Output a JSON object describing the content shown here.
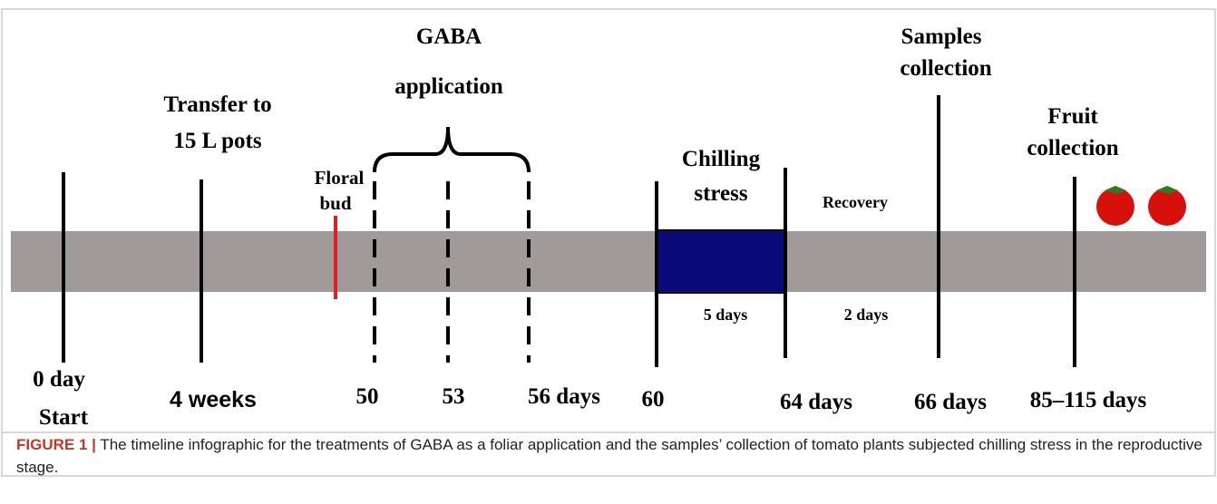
{
  "figure": {
    "labels": {
      "transfer": [
        "Transfer to",
        "15 L pots"
      ],
      "gaba": [
        "GABA",
        "application"
      ],
      "floral": [
        "Floral",
        "bud"
      ],
      "chilling": [
        "Chilling",
        "stress"
      ],
      "recovery": "Recovery",
      "samples": [
        "Samples",
        "collection"
      ],
      "fruit": [
        "Fruit",
        "collection"
      ],
      "chill_days": "5 days",
      "recovery_days": "2 days"
    },
    "timepoints": [
      "0 day",
      "Start",
      "4 weeks",
      "50",
      "53",
      "56 days",
      "60",
      "64 days",
      "66 days",
      "85–115 days"
    ]
  },
  "caption": {
    "label": "FIGURE 1 |",
    "text": "The timeline infographic for the treatments of GABA as a foliar application and the samples’ collection of tomato plants subjected chilling stress in the reproductive stage."
  }
}
